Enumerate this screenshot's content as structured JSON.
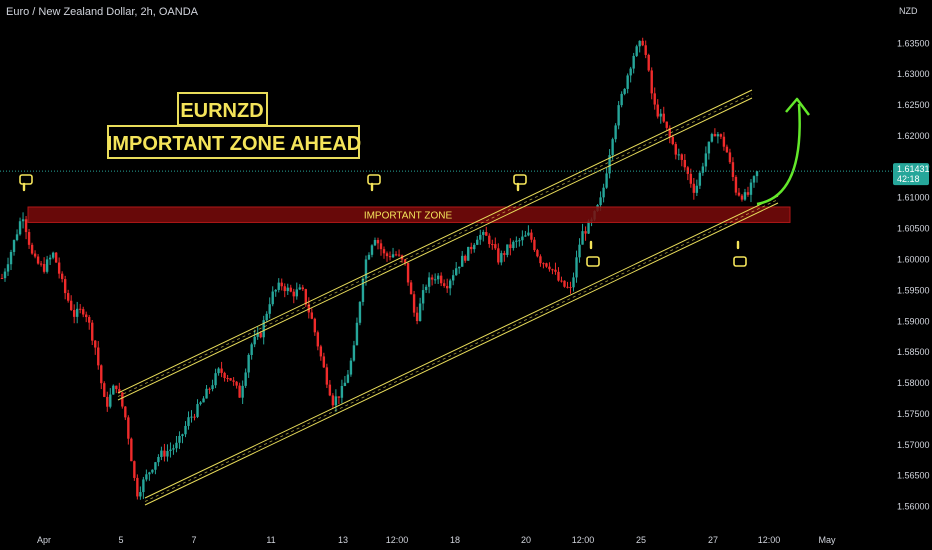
{
  "header": {
    "symbol_line": "Euro / New Zealand Dollar, 2h, OANDA",
    "currency": "NZD"
  },
  "annotations": {
    "title_box_1": "EURNZD",
    "title_box_2": "IMPORTANT ZONE AHEAD",
    "zone_label": "IMPORTANT ZONE"
  },
  "last_price": {
    "value": "1.61431",
    "countdown": "42:18"
  },
  "colors": {
    "up": "#26a69a",
    "down": "#ef2b2b",
    "zone": "#7a0b0b",
    "channel": "#e8dc5a",
    "arrow": "#63e82a",
    "title_border": "#e8dc5a",
    "title_text": "#f4e45a",
    "price_tag": "#26a69a"
  },
  "chart_data": {
    "type": "candlestick",
    "title": "Euro / New Zealand Dollar, 2h, OANDA",
    "y_axis": {
      "currency": "NZD",
      "range": [
        1.5575,
        1.6425
      ],
      "ticks": [
        "1.56000",
        "1.56500",
        "1.57000",
        "1.57500",
        "1.58000",
        "1.58500",
        "1.59000",
        "1.59500",
        "1.60000",
        "1.60500",
        "1.61000",
        "1.61500",
        "1.62000",
        "1.62500",
        "1.63000",
        "1.63500"
      ]
    },
    "x_axis": {
      "ticks": [
        "Apr",
        "5",
        "7",
        "11",
        "13",
        "12:00",
        "18",
        "20",
        "12:00",
        "25",
        "27",
        "12:00",
        "May"
      ]
    },
    "price_path": [
      [
        0,
        1.597
      ],
      [
        1,
        1.602
      ],
      [
        2,
        1.6075
      ],
      [
        3,
        1.6
      ],
      [
        4,
        1.5985
      ],
      [
        5,
        1.601
      ],
      [
        6,
        1.595
      ],
      [
        7,
        1.591
      ],
      [
        8,
        1.592
      ],
      [
        9,
        1.586
      ],
      [
        10,
        1.576
      ],
      [
        11,
        1.58
      ],
      [
        12,
        1.574
      ],
      [
        13,
        1.562
      ],
      [
        14,
        1.565
      ],
      [
        15,
        1.568
      ],
      [
        16,
        1.569
      ],
      [
        17,
        1.57
      ],
      [
        18,
        1.574
      ],
      [
        19,
        1.576
      ],
      [
        20,
        1.579
      ],
      [
        21,
        1.582
      ],
      [
        22,
        1.581
      ],
      [
        23,
        1.578
      ],
      [
        24,
        1.586
      ],
      [
        25,
        1.588
      ],
      [
        26,
        1.594
      ],
      [
        27,
        1.596
      ],
      [
        28,
        1.5945
      ],
      [
        29,
        1.595
      ],
      [
        30,
        1.59
      ],
      [
        31,
        1.583
      ],
      [
        32,
        1.577
      ],
      [
        33,
        1.579
      ],
      [
        34,
        1.585
      ],
      [
        35,
        1.599
      ],
      [
        36,
        1.604
      ],
      [
        37,
        1.6005
      ],
      [
        38,
        1.601
      ],
      [
        39,
        1.599
      ],
      [
        40,
        1.59
      ],
      [
        41,
        1.596
      ],
      [
        42,
        1.5975
      ],
      [
        43,
        1.596
      ],
      [
        44,
        1.599
      ],
      [
        45,
        1.601
      ],
      [
        46,
        1.604
      ],
      [
        47,
        1.6035
      ],
      [
        48,
        1.6
      ],
      [
        49,
        1.602
      ],
      [
        50,
        1.603
      ],
      [
        51,
        1.604
      ],
      [
        52,
        1.6
      ],
      [
        53,
        1.599
      ],
      [
        54,
        1.596
      ],
      [
        55,
        1.595
      ],
      [
        56,
        1.604
      ],
      [
        57,
        1.606
      ],
      [
        58,
        1.61
      ],
      [
        59,
        1.62
      ],
      [
        60,
        1.627
      ],
      [
        61,
        1.633
      ],
      [
        62,
        1.6355
      ],
      [
        63,
        1.625
      ],
      [
        64,
        1.622
      ],
      [
        65,
        1.618
      ],
      [
        66,
        1.615
      ],
      [
        67,
        1.611
      ],
      [
        68,
        1.617
      ],
      [
        69,
        1.621
      ],
      [
        70,
        1.618
      ],
      [
        71,
        1.611
      ],
      [
        72,
        1.61
      ],
      [
        73,
        1.614
      ]
    ],
    "zone": {
      "low": 1.606,
      "high": 1.6085,
      "label": "IMPORTANT ZONE"
    },
    "last_price": 1.61431,
    "legend": "none",
    "grid": false
  }
}
